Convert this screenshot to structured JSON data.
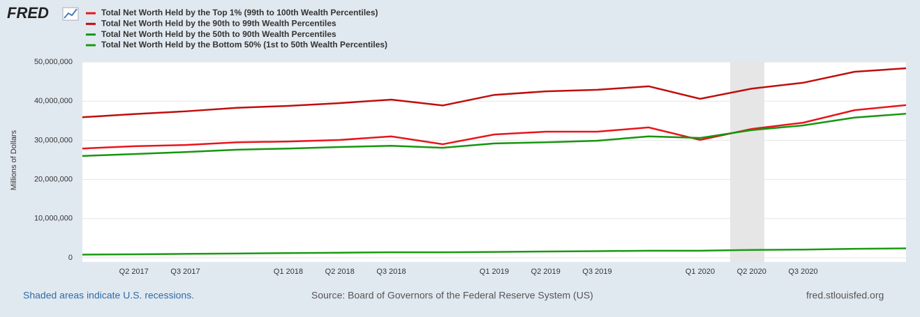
{
  "logo": "FRED",
  "chart_data": {
    "type": "line",
    "ylabel": "Millions of Dollars",
    "categories": [
      null,
      "Q2 2017",
      "Q3 2017",
      null,
      "Q1 2018",
      "Q2 2018",
      "Q3 2018",
      null,
      "Q1 2019",
      "Q2 2019",
      "Q3 2019",
      null,
      "Q1 2020",
      "Q2 2020",
      "Q3 2020",
      null,
      null
    ],
    "series": [
      {
        "name": "Total Net Worth Held by the Top 1% (99th to 100th Wealth Percentiles)",
        "color": "#e8151b",
        "values": [
          27900000,
          28500000,
          28800000,
          29500000,
          29700000,
          30100000,
          31000000,
          29000000,
          31500000,
          32200000,
          32200000,
          33300000,
          30100000,
          32900000,
          34500000,
          37700000,
          39000000
        ]
      },
      {
        "name": "Total Net Worth Held by the 90th to 99th Wealth Percentiles",
        "color": "#c00d0d",
        "values": [
          35900000,
          36700000,
          37400000,
          38300000,
          38800000,
          39500000,
          40400000,
          38900000,
          41600000,
          42500000,
          42900000,
          43800000,
          40600000,
          43200000,
          44700000,
          47500000,
          48400000
        ]
      },
      {
        "name": "Total Net Worth Held by the 50th to 90th Wealth Percentiles",
        "color": "#15960f",
        "values": [
          26000000,
          26500000,
          27000000,
          27600000,
          27900000,
          28300000,
          28600000,
          28100000,
          29200000,
          29500000,
          29900000,
          31000000,
          30600000,
          32600000,
          33800000,
          35800000,
          36800000
        ]
      },
      {
        "name": "Total Net Worth Held by the Bottom 50% (1st to 50th Wealth Percentiles)",
        "color": "#1a9a12",
        "values": [
          800000,
          900000,
          1000000,
          1100000,
          1200000,
          1300000,
          1400000,
          1400000,
          1500000,
          1600000,
          1700000,
          1800000,
          1800000,
          2000000,
          2100000,
          2300000,
          2400000
        ]
      }
    ],
    "ylim": [
      0,
      50000000
    ],
    "yticks": [
      0,
      {
        "value": 10000000,
        "label": "10,000,000"
      },
      {
        "value": 20000000,
        "label": "20,000,000"
      },
      {
        "value": 30000000,
        "label": "30,000,000"
      },
      {
        "value": 40000000,
        "label": "40,000,000"
      },
      {
        "value": 50000000,
        "label": "50,000,000"
      }
    ],
    "grid": true
  },
  "footer": {
    "recessions_note": "Shaded areas indicate U.S. recessions.",
    "source": "Source: Board of Governors of the Federal Reserve System (US)",
    "site": "fred.stlouisfed.org"
  }
}
